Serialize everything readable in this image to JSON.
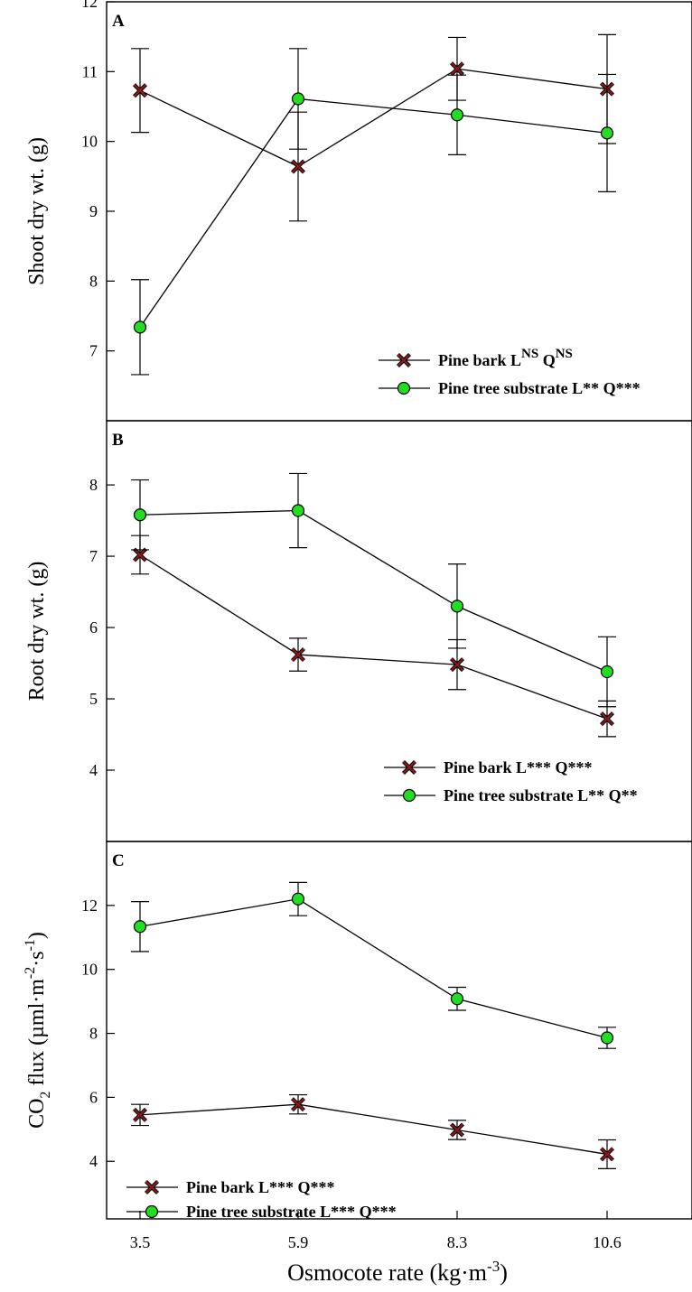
{
  "x_axis": {
    "title": "Osmocote rate (kg·m",
    "title_sup": "-3",
    "title_end": ")",
    "tick_labels": [
      "3.5",
      "5.9",
      "8.3",
      "10.6"
    ]
  },
  "colors": {
    "pine_bark_marker": "#8b1a1a",
    "pine_tree_substrate_marker": "#22dd22",
    "line": "#000000"
  },
  "chart_data": [
    {
      "type": "line",
      "panel_label": "A",
      "ylabel": "Shoot dry wt. (g)",
      "ylim": [
        6,
        12
      ],
      "yticks": [
        7,
        8,
        9,
        10,
        11,
        12
      ],
      "categories": [
        "3.5",
        "5.9",
        "8.3",
        "10.6"
      ],
      "legend_position": "bottom-right",
      "series": [
        {
          "key": "pine_bark",
          "marker": "x",
          "legend": {
            "name": "Pine bark L",
            "sup1": "NS",
            "mid": " Q",
            "sup2": "NS",
            "end": ""
          },
          "values": [
            10.73,
            9.64,
            11.04,
            10.75
          ],
          "errors": [
            0.6,
            0.78,
            0.45,
            0.78
          ]
        },
        {
          "key": "pine_tree_substrate",
          "marker": "circle",
          "legend": {
            "name": "Pine tree substrate L** Q***",
            "sup1": "",
            "mid": "",
            "sup2": "",
            "end": ""
          },
          "values": [
            7.34,
            10.61,
            10.38,
            10.12
          ],
          "errors": [
            0.68,
            0.72,
            0.57,
            0.84
          ]
        }
      ]
    },
    {
      "type": "line",
      "panel_label": "B",
      "ylabel": "Root dry wt. (g)",
      "ylim": [
        3,
        8.9
      ],
      "yticks": [
        4,
        5,
        6,
        7,
        8
      ],
      "categories": [
        "3.5",
        "5.9",
        "8.3",
        "10.6"
      ],
      "legend_position": "bottom-right",
      "series": [
        {
          "key": "pine_bark",
          "marker": "x",
          "legend": {
            "name": "Pine bark L*** Q***",
            "sup1": "",
            "mid": "",
            "sup2": "",
            "end": ""
          },
          "values": [
            7.02,
            5.62,
            5.48,
            4.72
          ],
          "errors": [
            0.27,
            0.23,
            0.35,
            0.25
          ]
        },
        {
          "key": "pine_tree_substrate",
          "marker": "circle",
          "legend": {
            "name": "Pine tree substrate L** Q**",
            "sup1": "",
            "mid": "",
            "sup2": "",
            "end": ""
          },
          "values": [
            7.58,
            7.64,
            6.3,
            5.38
          ],
          "errors": [
            0.49,
            0.52,
            0.59,
            0.49
          ]
        }
      ]
    },
    {
      "type": "line",
      "panel_label": "C",
      "ylabel": "CO",
      "ylabel_sub": "2",
      "ylabel_rest": " flux (µml·m",
      "ylabel_sup1": "-2",
      "ylabel_mid": "·s",
      "ylabel_sup2": "-1",
      "ylabel_end": ")",
      "ylim": [
        2.2,
        14
      ],
      "yticks": [
        4,
        6,
        8,
        10,
        12
      ],
      "categories": [
        "3.5",
        "5.9",
        "8.3",
        "10.6"
      ],
      "legend_position": "bottom-left",
      "series": [
        {
          "key": "pine_bark",
          "marker": "x",
          "legend": {
            "name": "Pine bark L*** Q***",
            "sup1": "",
            "mid": "",
            "sup2": "",
            "end": ""
          },
          "values": [
            5.45,
            5.78,
            4.98,
            4.22
          ],
          "errors": [
            0.33,
            0.3,
            0.3,
            0.45
          ]
        },
        {
          "key": "pine_tree_substrate",
          "marker": "circle",
          "legend": {
            "name": "Pine tree substrate L*** Q***",
            "sup1": "",
            "mid": "",
            "sup2": "",
            "end": ""
          },
          "values": [
            11.34,
            12.2,
            9.08,
            7.86
          ],
          "errors": [
            0.78,
            0.52,
            0.36,
            0.33
          ]
        }
      ]
    }
  ]
}
